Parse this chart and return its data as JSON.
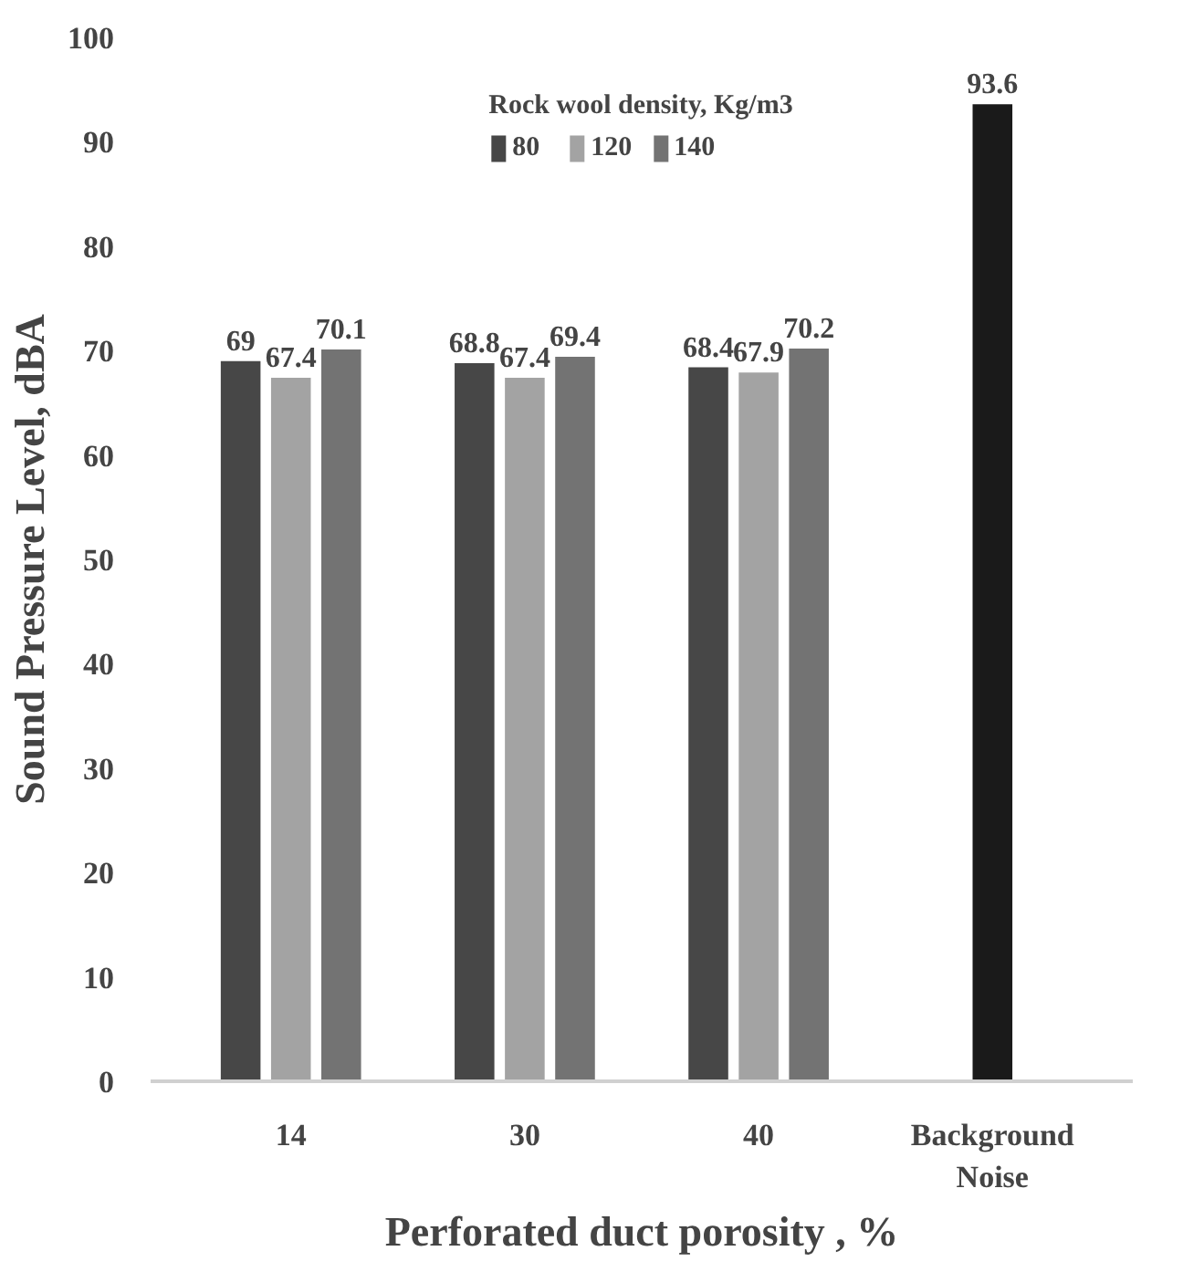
{
  "chart_data": {
    "type": "bar",
    "xlabel": "Perforated duct porosity , %",
    "ylabel": "Sound Pressure Level, dBA",
    "legend_title": "Rock wool density, Kg/m3",
    "categories": [
      "14",
      "30",
      "40",
      "Background Noise"
    ],
    "series": [
      {
        "name": "80",
        "color": "#474747",
        "values": [
          69,
          68.8,
          68.4,
          null
        ]
      },
      {
        "name": "120",
        "color": "#a3a3a3",
        "values": [
          67.4,
          67.4,
          67.9,
          null
        ]
      },
      {
        "name": "140",
        "color": "#737373",
        "values": [
          70.1,
          69.4,
          70.2,
          null
        ]
      },
      {
        "color": "#1a1a1a",
        "values": [
          null,
          null,
          null,
          93.6
        ]
      }
    ],
    "ylim": [
      0,
      100
    ],
    "yticks": [
      0,
      10,
      20,
      30,
      40,
      50,
      60,
      70,
      80,
      90,
      100
    ],
    "data_labels": true,
    "legend": "top",
    "grid": false
  }
}
